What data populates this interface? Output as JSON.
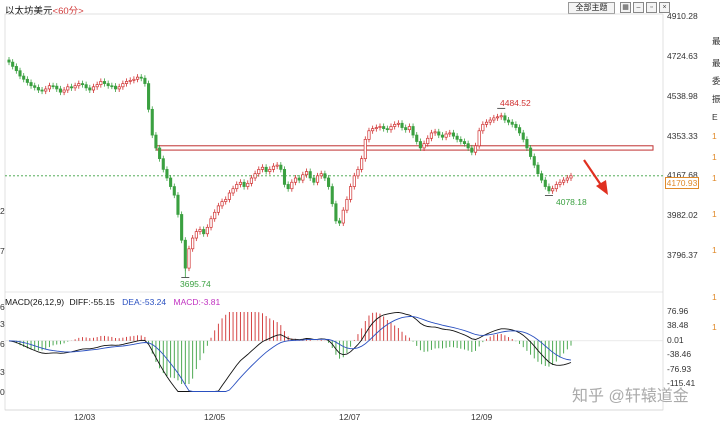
{
  "header": {
    "instrument": "以太坊美元",
    "period": "<60分>",
    "mode_button": "全部主题",
    "toolbar_icons": [
      "grid-icon",
      "minimize-icon",
      "restore-icon",
      "close-icon"
    ]
  },
  "price_axis": {
    "labels": [
      "4910.28",
      "4724.63",
      "4538.98",
      "4353.33",
      "4167.68",
      "3982.02",
      "3796.37"
    ],
    "current_price": "4170.93"
  },
  "annotations": {
    "high": "4484.52",
    "low": "3695.74",
    "recent_low": "4078.18"
  },
  "macd": {
    "label": "MACD(26,12,9)",
    "diff": "DIFF:-55.15",
    "dea": "DEA:-53.24",
    "macd": "MACD:-3.81",
    "axis_labels": [
      "76.96",
      "38.48",
      "0.01",
      "-38.46",
      "-76.93",
      "-115.41"
    ]
  },
  "time_axis": {
    "labels": [
      "12/03",
      "12/05",
      "12/07",
      "12/09"
    ]
  },
  "left_edge_digits": [
    "2",
    "7",
    "6",
    "3",
    "6",
    "3",
    "0"
  ],
  "right_edge_chars": [
    "最",
    "最",
    "委",
    "振",
    "E",
    "1",
    "1",
    "1",
    "1",
    "1",
    "1",
    "1"
  ],
  "watermark": "知乎 @轩辕道金",
  "colors": {
    "up": "#d03030",
    "down": "#3aa040",
    "resistance": "#c03030",
    "ref_line": "#3aa040",
    "arrow": "#e03020",
    "current_price": "#e08a2a"
  },
  "chart_data": {
    "type": "candlestick",
    "instrument": "以太坊美元",
    "interval": "60分",
    "y_axis_ticks": [
      4910.28,
      4724.63,
      4538.98,
      4353.33,
      4167.68,
      3982.02,
      3796.37
    ],
    "x_axis_ticks": [
      "12/03",
      "12/05",
      "12/07",
      "12/09"
    ],
    "closes": [
      4700,
      4680,
      4660,
      4635,
      4620,
      4605,
      4590,
      4582,
      4570,
      4565,
      4575,
      4590,
      4588,
      4575,
      4560,
      4570,
      4585,
      4580,
      4590,
      4600,
      4595,
      4580,
      4570,
      4585,
      4595,
      4610,
      4600,
      4590,
      4588,
      4575,
      4585,
      4600,
      4610,
      4615,
      4620,
      4630,
      4625,
      4600,
      4480,
      4360,
      4300,
      4250,
      4200,
      4160,
      4120,
      4080,
      3990,
      3870,
      3740,
      3830,
      3880,
      3910,
      3920,
      3900,
      3930,
      3970,
      4000,
      4030,
      4050,
      4060,
      4090,
      4110,
      4130,
      4140,
      4120,
      4135,
      4160,
      4180,
      4200,
      4210,
      4190,
      4200,
      4215,
      4220,
      4200,
      4130,
      4110,
      4140,
      4160,
      4150,
      4175,
      4190,
      4160,
      4140,
      4170,
      4180,
      4160,
      4120,
      4040,
      3960,
      3950,
      4010,
      4060,
      4120,
      4170,
      4200,
      4250,
      4340,
      4380,
      4390,
      4395,
      4400,
      4390,
      4385,
      4400,
      4410,
      4415,
      4395,
      4385,
      4400,
      4360,
      4330,
      4300,
      4320,
      4345,
      4370,
      4375,
      4360,
      4350,
      4365,
      4370,
      4355,
      4340,
      4330,
      4320,
      4300,
      4280,
      4310,
      4380,
      4410,
      4420,
      4430,
      4440,
      4445,
      4450,
      4430,
      4420,
      4410,
      4395,
      4370,
      4340,
      4300,
      4260,
      4220,
      4180,
      4150,
      4120,
      4100,
      4110,
      4130,
      4140,
      4150,
      4160,
      4170
    ],
    "high_annotation": 4484.52,
    "low_annotation": 3695.74,
    "recent_low_annotation": 4078.18,
    "current_price": 4170.93,
    "resistance_zone": [
      4290,
      4310
    ],
    "reference_level": 4170,
    "macd": {
      "params": "26,12,9",
      "diff": -55.15,
      "dea": -53.24,
      "macd": -3.81,
      "y_axis_ticks": [
        76.96,
        38.48,
        0.01,
        -38.46,
        -76.93,
        -115.41
      ]
    }
  }
}
